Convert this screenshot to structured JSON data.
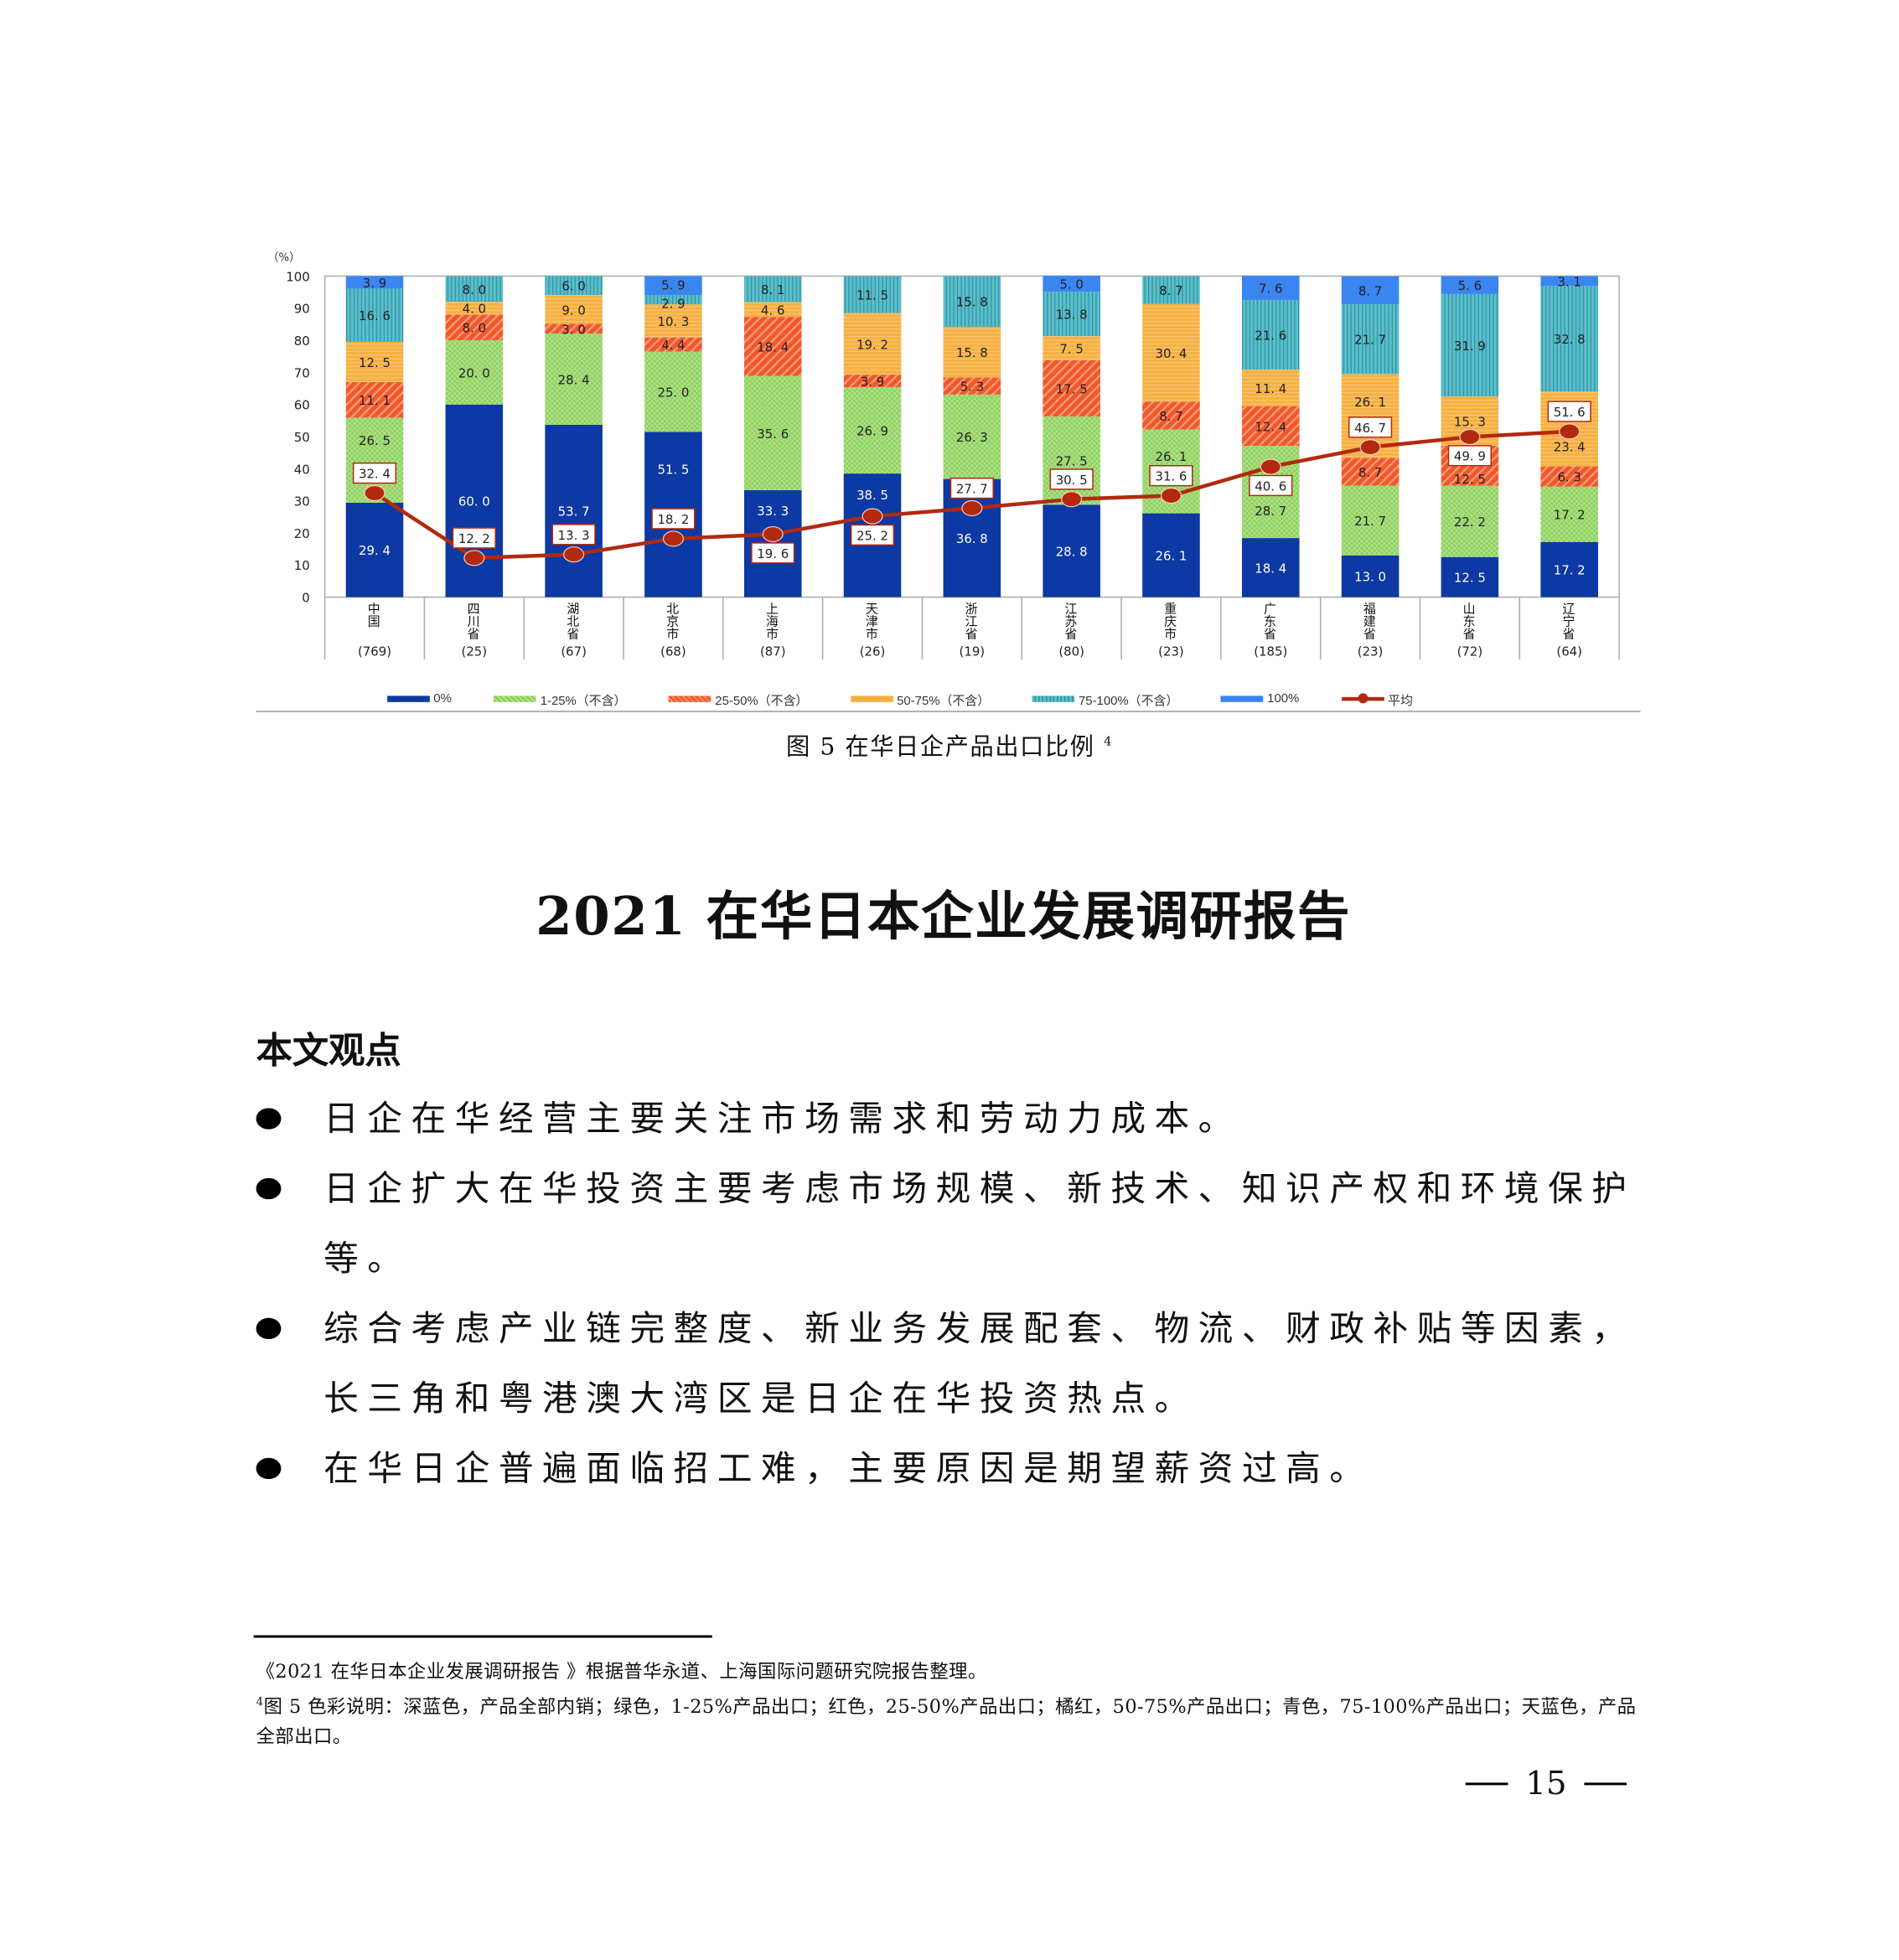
{
  "chart_data": {
    "type": "bar",
    "stacked": true,
    "y_unit_label": "（%）",
    "ylim": [
      0,
      100
    ],
    "yticks": [
      "0",
      "10",
      "20",
      "30",
      "40",
      "50",
      "60",
      "70",
      "80",
      "90",
      "100"
    ],
    "categories": [
      "中国",
      "四川省",
      "湖北省",
      "北京市",
      "上海市",
      "天津市",
      "浙江省",
      "江苏省",
      "重庆市",
      "广东省",
      "福建省",
      "山东省",
      "辽宁省"
    ],
    "sample_sizes": [
      "(769)",
      "(25)",
      "(67)",
      "(68)",
      "(87)",
      "(26)",
      "(19)",
      "(80)",
      "(23)",
      "(185)",
      "(23)",
      "(72)",
      "(64)"
    ],
    "series": [
      {
        "name": "0%",
        "color": "#0c39a3",
        "values": [
          29.4,
          60.0,
          53.7,
          51.5,
          33.3,
          38.5,
          36.8,
          28.8,
          26.1,
          18.4,
          13.0,
          12.5,
          17.2
        ]
      },
      {
        "name": "1-25%（不含）",
        "color": "#8fd15c",
        "values": [
          26.5,
          20.0,
          28.4,
          25.0,
          35.6,
          26.9,
          26.3,
          27.5,
          26.1,
          28.7,
          21.7,
          22.2,
          17.2
        ]
      },
      {
        "name": "25-50%（不含）",
        "color": "#f2572a",
        "values": [
          11.1,
          8.0,
          3.0,
          4.4,
          18.4,
          3.9,
          5.3,
          17.5,
          8.7,
          12.4,
          8.7,
          12.5,
          6.3
        ]
      },
      {
        "name": "50-75%（不含）",
        "color": "#f6b042",
        "values": [
          12.5,
          4.0,
          9.0,
          10.3,
          4.6,
          19.2,
          15.8,
          7.5,
          30.4,
          11.4,
          26.1,
          15.3,
          23.4
        ]
      },
      {
        "name": "75-100%（不含）",
        "color": "#5bbfcb",
        "values": [
          16.6,
          8.0,
          6.0,
          2.9,
          8.1,
          11.5,
          15.8,
          13.8,
          8.7,
          21.6,
          21.7,
          31.9,
          32.8
        ]
      },
      {
        "name": "100%",
        "color": "#3b85f0",
        "values": [
          3.9,
          0,
          0,
          5.9,
          0,
          0,
          0,
          5.0,
          0,
          7.6,
          8.7,
          5.6,
          3.1
        ]
      }
    ],
    "line": {
      "name": "平均",
      "color": "#b3290f",
      "values": [
        32.4,
        12.2,
        13.3,
        18.2,
        19.6,
        25.2,
        27.7,
        30.5,
        31.6,
        40.6,
        46.7,
        49.9,
        51.6
      ]
    },
    "legend_position": "bottom",
    "title": "图 5  在华日企产品出口比例",
    "title_footnote_mark": "4"
  },
  "document": {
    "title": "2021 在华日本企业发展调研报告",
    "section_heading": "本文观点",
    "bullets": [
      "日企在华经营主要关注市场需求和劳动力成本。",
      "日企扩大在华投资主要考虑市场规模、新技术、知识产权和环境保护等。",
      "综合考虑产业链完整度、新业务发展配套、物流、财政补贴等因素，长三角和粤港澳大湾区是日企在华投资热点。",
      "在华日企普遍面临招工难，主要原因是期望薪资过高。"
    ],
    "footnotes": [
      {
        "mark": "",
        "text": "《2021 在华日本企业发展调研报告 》根据普华永道、上海国际问题研究院报告整理。"
      },
      {
        "mark": "4",
        "text": "图 5 色彩说明：深蓝色，产品全部内销；绿色，1-25%产品出口；红色，25-50%产品出口；橘红，50-75%产品出口；青色，75-100%产品出口；天蓝色，产品全部出口。"
      }
    ],
    "page_number": "15"
  }
}
